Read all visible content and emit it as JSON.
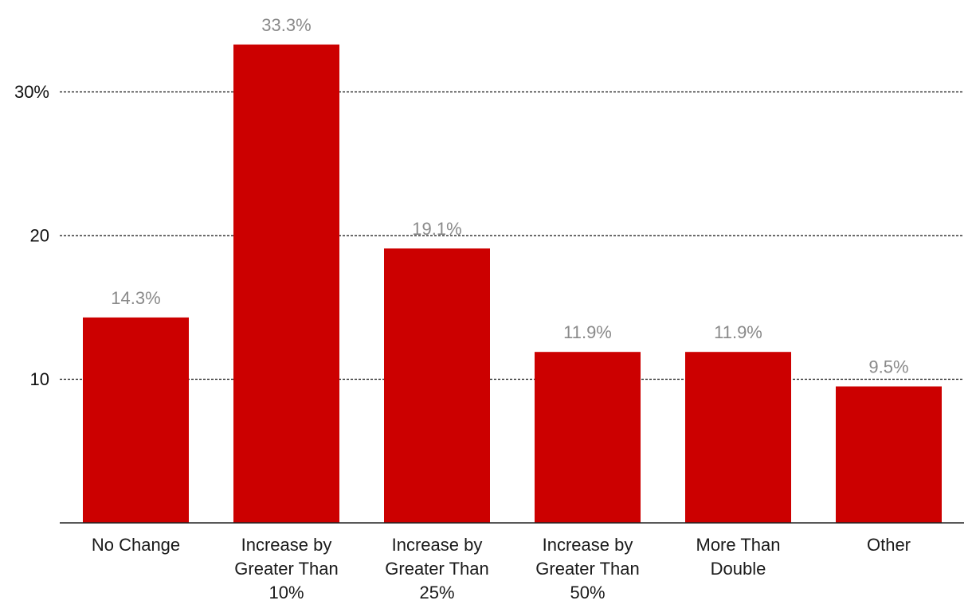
{
  "chart_data": {
    "type": "bar",
    "categories": [
      [
        "No Change"
      ],
      [
        "Increase by",
        "Greater Than",
        "10%"
      ],
      [
        "Increase by",
        "Greater Than",
        "25%"
      ],
      [
        "Increase by",
        "Greater Than",
        "50%"
      ],
      [
        "More Than",
        "Double"
      ],
      [
        "Other"
      ]
    ],
    "values": [
      14.3,
      33.3,
      19.1,
      11.9,
      11.9,
      9.5
    ],
    "data_labels": [
      "14.3%",
      "33.3%",
      "19.1%",
      "11.9%",
      "11.9%",
      "9.5%"
    ],
    "y_ticks": [
      {
        "value": 10,
        "label": "10"
      },
      {
        "value": 20,
        "label": "20"
      },
      {
        "value": 30,
        "label": "30%"
      }
    ],
    "ylim": [
      0,
      35
    ],
    "grid": true,
    "grid_style": "dotted",
    "bar_color": "#cc0000",
    "data_label_color": "#8a8a8a"
  }
}
